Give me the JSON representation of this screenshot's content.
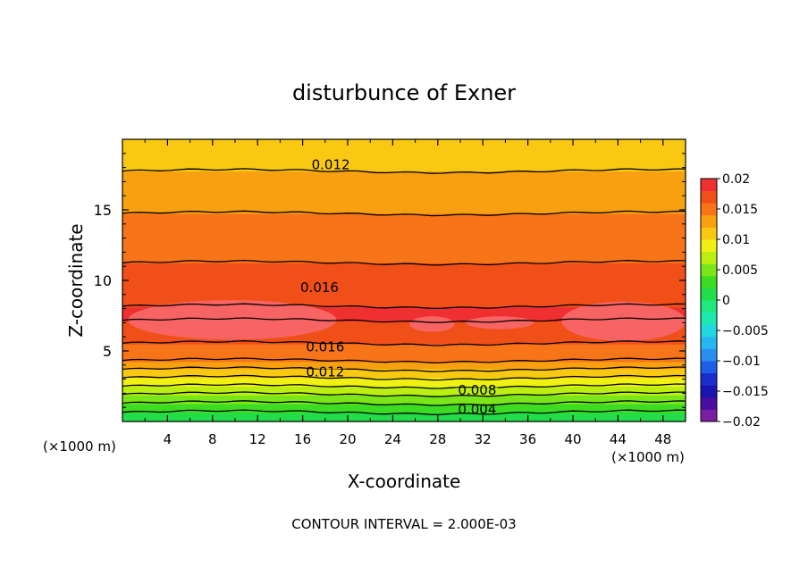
{
  "chart_data": {
    "type": "heatmap",
    "title": "disturbunce of Exner",
    "xlabel": "X-coordinate",
    "ylabel": "Z-coordinate",
    "x_unit_label_left": "(×1000 m)",
    "x_unit_label_right": "(×1000 m)",
    "footer": "CONTOUR INTERVAL = 2.000E-03",
    "xlim": [
      0,
      50
    ],
    "ylim": [
      0,
      20
    ],
    "x_ticks": [
      4,
      8,
      12,
      16,
      20,
      24,
      28,
      32,
      36,
      40,
      44,
      48
    ],
    "x_tick_labels": [
      "4",
      "8",
      "12",
      "16",
      "20",
      "24",
      "28",
      "32",
      "36",
      "40",
      "44",
      "48"
    ],
    "y_ticks": [
      5,
      10,
      15
    ],
    "y_tick_labels": [
      "5",
      "10",
      "15"
    ],
    "contour_interval": 0.002,
    "colorbar": {
      "min": -0.02,
      "max": 0.02,
      "tick_values": [
        0.02,
        0.015,
        0.01,
        0.005,
        0,
        -0.005,
        -0.01,
        -0.015,
        -0.02
      ],
      "tick_labels": [
        "0.02",
        "0.015",
        "0.01",
        "0.005",
        "0",
        "−0.005",
        "−0.01",
        "−0.015",
        "−0.02"
      ]
    },
    "vertical_profile": [
      {
        "z": 0.3,
        "value": 0.001
      },
      {
        "z": 1.0,
        "value": 0.003
      },
      {
        "z": 1.6,
        "value": 0.005
      },
      {
        "z": 2.2,
        "value": 0.007
      },
      {
        "z": 2.8,
        "value": 0.009
      },
      {
        "z": 3.4,
        "value": 0.011
      },
      {
        "z": 4.0,
        "value": 0.013
      },
      {
        "z": 4.6,
        "value": 0.015
      },
      {
        "z": 6.5,
        "value": 0.017
      },
      {
        "z": 7.5,
        "value": 0.0185
      },
      {
        "z": 9.5,
        "value": 0.017
      },
      {
        "z": 13.0,
        "value": 0.015
      },
      {
        "z": 16.5,
        "value": 0.013
      },
      {
        "z": 19.0,
        "value": 0.011
      }
    ],
    "contour_labels": [
      {
        "text": "0.012",
        "x": 18.5,
        "z": 18.2
      },
      {
        "text": "0.016",
        "x": 17.5,
        "z": 9.5
      },
      {
        "text": "0.016",
        "x": 18.0,
        "z": 5.3
      },
      {
        "text": "0.012",
        "x": 18.0,
        "z": 3.5
      },
      {
        "text": "0.008",
        "x": 31.5,
        "z": 2.2
      },
      {
        "text": "0.004",
        "x": 31.5,
        "z": 0.85
      }
    ]
  }
}
